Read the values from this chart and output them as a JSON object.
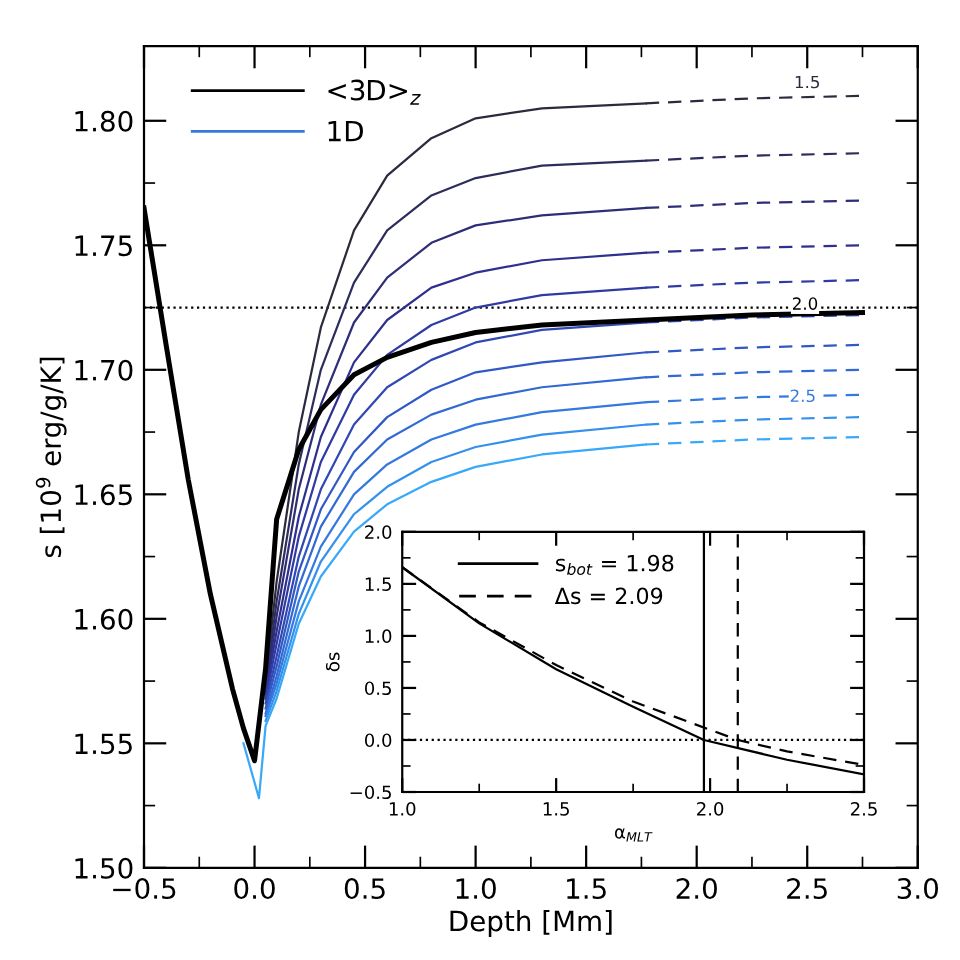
{
  "chart_data": [
    {
      "type": "line",
      "xlabel": "Depth [Mm]",
      "ylabel": "s [10$^{9}$ erg/g/K]",
      "xlim": [
        -0.5,
        3.0
      ],
      "ylim": [
        1.5,
        1.83
      ],
      "xticks": [
        {
          "value": -0.5,
          "label": "−0.5"
        },
        {
          "value": 0.0,
          "label": "0.0"
        },
        {
          "value": 0.5,
          "label": "0.5"
        },
        {
          "value": 1.0,
          "label": "1.0"
        },
        {
          "value": 1.5,
          "label": "1.5"
        },
        {
          "value": 2.0,
          "label": "2.0"
        },
        {
          "value": 2.5,
          "label": "2.5"
        },
        {
          "value": 3.0,
          "label": "3.0"
        }
      ],
      "yticks": [
        {
          "value": 1.5,
          "label": "1.50"
        },
        {
          "value": 1.55,
          "label": "1.55"
        },
        {
          "value": 1.6,
          "label": "1.60"
        },
        {
          "value": 1.65,
          "label": "1.65"
        },
        {
          "value": 1.7,
          "label": "1.70"
        },
        {
          "value": 1.75,
          "label": "1.75"
        },
        {
          "value": 1.8,
          "label": "1.80"
        }
      ],
      "grid": false,
      "legend": "top left",
      "marker": "none",
      "x": [
        -0.05,
        0.02,
        0.05,
        0.1,
        0.2,
        0.3,
        0.45,
        0.6,
        0.8,
        1.0,
        1.3,
        1.77
      ],
      "ref_lines": [
        {
          "axis": "y",
          "value": 1.725,
          "line_style": "dotted",
          "color": "#000000"
        }
      ],
      "annotations": [
        {
          "text": "1.5",
          "x": 2.5,
          "y": 1.815
        },
        {
          "text": "2.0",
          "x": 2.49,
          "y": 1.726
        },
        {
          "text": "2.5",
          "x": 2.48,
          "y": 1.689
        }
      ],
      "series": [
        {
          "name": "<3D>$_{z}$",
          "color": "#000000",
          "line_style": "solid",
          "x": [
            -0.5,
            -0.4,
            -0.3,
            -0.2,
            -0.1,
            -0.05,
            0.0,
            0.05,
            0.1,
            0.2,
            0.3,
            0.45,
            0.6,
            0.8,
            1.0,
            1.3,
            1.77,
            2.25,
            2.75
          ],
          "values": [
            1.765,
            1.71,
            1.656,
            1.61,
            1.572,
            1.556,
            1.543,
            1.58,
            1.64,
            1.668,
            1.684,
            1.698,
            1.705,
            1.711,
            1.715,
            1.718,
            1.72,
            1.722,
            1.723
          ]
        },
        {
          "color": "#2b2b3d",
          "line_style": "solid",
          "values": [
            null,
            null,
            1.575,
            1.615,
            1.675,
            1.717,
            1.756,
            1.778,
            1.793,
            1.801,
            1.805,
            1.807
          ]
        },
        {
          "color": "#2d2d5c",
          "line_style": "solid",
          "values": [
            null,
            null,
            1.573,
            1.607,
            1.662,
            1.7,
            1.735,
            1.756,
            1.77,
            1.777,
            1.782,
            1.784
          ]
        },
        {
          "color": "#2e2e78",
          "line_style": "solid",
          "values": [
            null,
            null,
            1.571,
            1.601,
            1.652,
            1.686,
            1.719,
            1.737,
            1.751,
            1.758,
            1.762,
            1.765
          ]
        },
        {
          "color": "#2f2f8f",
          "line_style": "solid",
          "values": [
            null,
            null,
            1.57,
            1.595,
            1.641,
            1.673,
            1.703,
            1.72,
            1.733,
            1.739,
            1.744,
            1.747
          ]
        },
        {
          "color": "#2f3aa3",
          "line_style": "solid",
          "values": [
            null,
            null,
            1.568,
            1.59,
            1.633,
            1.663,
            1.69,
            1.706,
            1.718,
            1.725,
            1.73,
            1.733
          ]
        },
        {
          "color": "#3048b3",
          "line_style": "solid",
          "values": [
            null,
            null,
            1.566,
            1.585,
            1.625,
            1.652,
            1.678,
            1.693,
            1.704,
            1.711,
            1.716,
            1.719
          ]
        },
        {
          "color": "#3158c4",
          "line_style": "solid",
          "values": [
            null,
            null,
            1.564,
            1.581,
            1.619,
            1.644,
            1.667,
            1.681,
            1.692,
            1.699,
            1.703,
            1.707
          ]
        },
        {
          "color": "#3269d3",
          "line_style": "solid",
          "values": [
            null,
            null,
            1.562,
            1.577,
            1.613,
            1.637,
            1.659,
            1.672,
            1.682,
            1.688,
            1.693,
            1.697
          ]
        },
        {
          "name": "1D",
          "color": "#3379e0",
          "line_style": "solid",
          "values": [
            null,
            null,
            1.561,
            1.574,
            1.607,
            1.629,
            1.65,
            1.662,
            1.672,
            1.678,
            1.683,
            1.687
          ]
        },
        {
          "color": "#3590ec",
          "line_style": "solid",
          "values": [
            null,
            null,
            1.559,
            1.571,
            1.602,
            1.623,
            1.642,
            1.653,
            1.663,
            1.669,
            1.674,
            1.678
          ]
        },
        {
          "color": "#38a8f8",
          "line_style": "solid",
          "values": [
            1.55,
            1.528,
            1.557,
            1.568,
            1.598,
            1.617,
            1.635,
            1.646,
            1.655,
            1.661,
            1.666,
            1.67
          ]
        },
        {
          "color": "#2b2b3d",
          "line_style": "dashed",
          "x": [
            1.77,
            2.25,
            2.75
          ],
          "values": [
            1.807,
            1.809,
            1.81
          ]
        },
        {
          "color": "#2d2d5c",
          "line_style": "dashed",
          "x": [
            1.77,
            2.25,
            2.75
          ],
          "values": [
            1.784,
            1.786,
            1.787
          ]
        },
        {
          "color": "#2e2e78",
          "line_style": "dashed",
          "x": [
            1.77,
            2.25,
            2.75
          ],
          "values": [
            1.765,
            1.767,
            1.768
          ]
        },
        {
          "color": "#2f2f8f",
          "line_style": "dashed",
          "x": [
            1.77,
            2.25,
            2.75
          ],
          "values": [
            1.747,
            1.749,
            1.75
          ]
        },
        {
          "color": "#2f3aa3",
          "line_style": "dashed",
          "x": [
            1.77,
            2.25,
            2.75
          ],
          "values": [
            1.733,
            1.735,
            1.736
          ]
        },
        {
          "color": "#3048b3",
          "line_style": "dashed",
          "x": [
            1.77,
            2.25,
            2.75
          ],
          "values": [
            1.719,
            1.721,
            1.722
          ]
        },
        {
          "color": "#3158c4",
          "line_style": "dashed",
          "x": [
            1.77,
            2.25,
            2.75
          ],
          "values": [
            1.707,
            1.709,
            1.71
          ]
        },
        {
          "color": "#3269d3",
          "line_style": "dashed",
          "x": [
            1.77,
            2.25,
            2.75
          ],
          "values": [
            1.697,
            1.699,
            1.7
          ]
        },
        {
          "color": "#3379e0",
          "line_style": "dashed",
          "x": [
            1.77,
            2.25,
            2.75
          ],
          "values": [
            1.687,
            1.689,
            1.69
          ]
        },
        {
          "color": "#3590ec",
          "line_style": "dashed",
          "x": [
            1.77,
            2.25,
            2.75
          ],
          "values": [
            1.678,
            1.68,
            1.681
          ]
        },
        {
          "color": "#38a8f8",
          "line_style": "dashed",
          "x": [
            1.77,
            2.25,
            2.75
          ],
          "values": [
            1.67,
            1.672,
            1.673
          ]
        }
      ]
    },
    {
      "type": "line",
      "xlabel": "α$_{MLT}$",
      "ylabel": "δs",
      "xlim": [
        1.0,
        2.5
      ],
      "ylim": [
        -0.5,
        2.0
      ],
      "xticks": [
        {
          "value": 1.0,
          "label": "1.0"
        },
        {
          "value": 1.5,
          "label": "1.5"
        },
        {
          "value": 2.0,
          "label": "2.0"
        },
        {
          "value": 2.5,
          "label": "2.5"
        }
      ],
      "yticks": [
        {
          "value": -0.5,
          "label": "−0.5"
        },
        {
          "value": 0.0,
          "label": "0.0"
        },
        {
          "value": 0.5,
          "label": "0.5"
        },
        {
          "value": 1.0,
          "label": "1.0"
        },
        {
          "value": 1.5,
          "label": "1.5"
        },
        {
          "value": 2.0,
          "label": "2.0"
        }
      ],
      "grid": false,
      "legend": "top",
      "marker": "none",
      "x": [
        1.0,
        1.25,
        1.5,
        1.75,
        1.98,
        2.25,
        2.5
      ],
      "ref_lines": [
        {
          "axis": "y",
          "value": 0.0,
          "line_style": "dotted",
          "color": "#000000"
        },
        {
          "axis": "x",
          "value": 1.98,
          "line_style": "solid",
          "color": "#000000"
        },
        {
          "axis": "x",
          "value": 2.09,
          "line_style": "dashed",
          "color": "#000000"
        }
      ],
      "series": [
        {
          "name": "s$_{bot}$ = 1.98",
          "color": "#000000",
          "line_style": "solid",
          "values": [
            1.66,
            1.12,
            0.68,
            0.32,
            0.0,
            -0.19,
            -0.33
          ]
        },
        {
          "name": "Δs = 2.09",
          "color": "#000000",
          "line_style": "dashed",
          "x": [
            1.0,
            1.25,
            1.5,
            1.75,
            2.09,
            2.25,
            2.5
          ],
          "values": [
            1.66,
            1.13,
            0.72,
            0.37,
            0.0,
            -0.11,
            -0.24
          ]
        }
      ]
    }
  ]
}
